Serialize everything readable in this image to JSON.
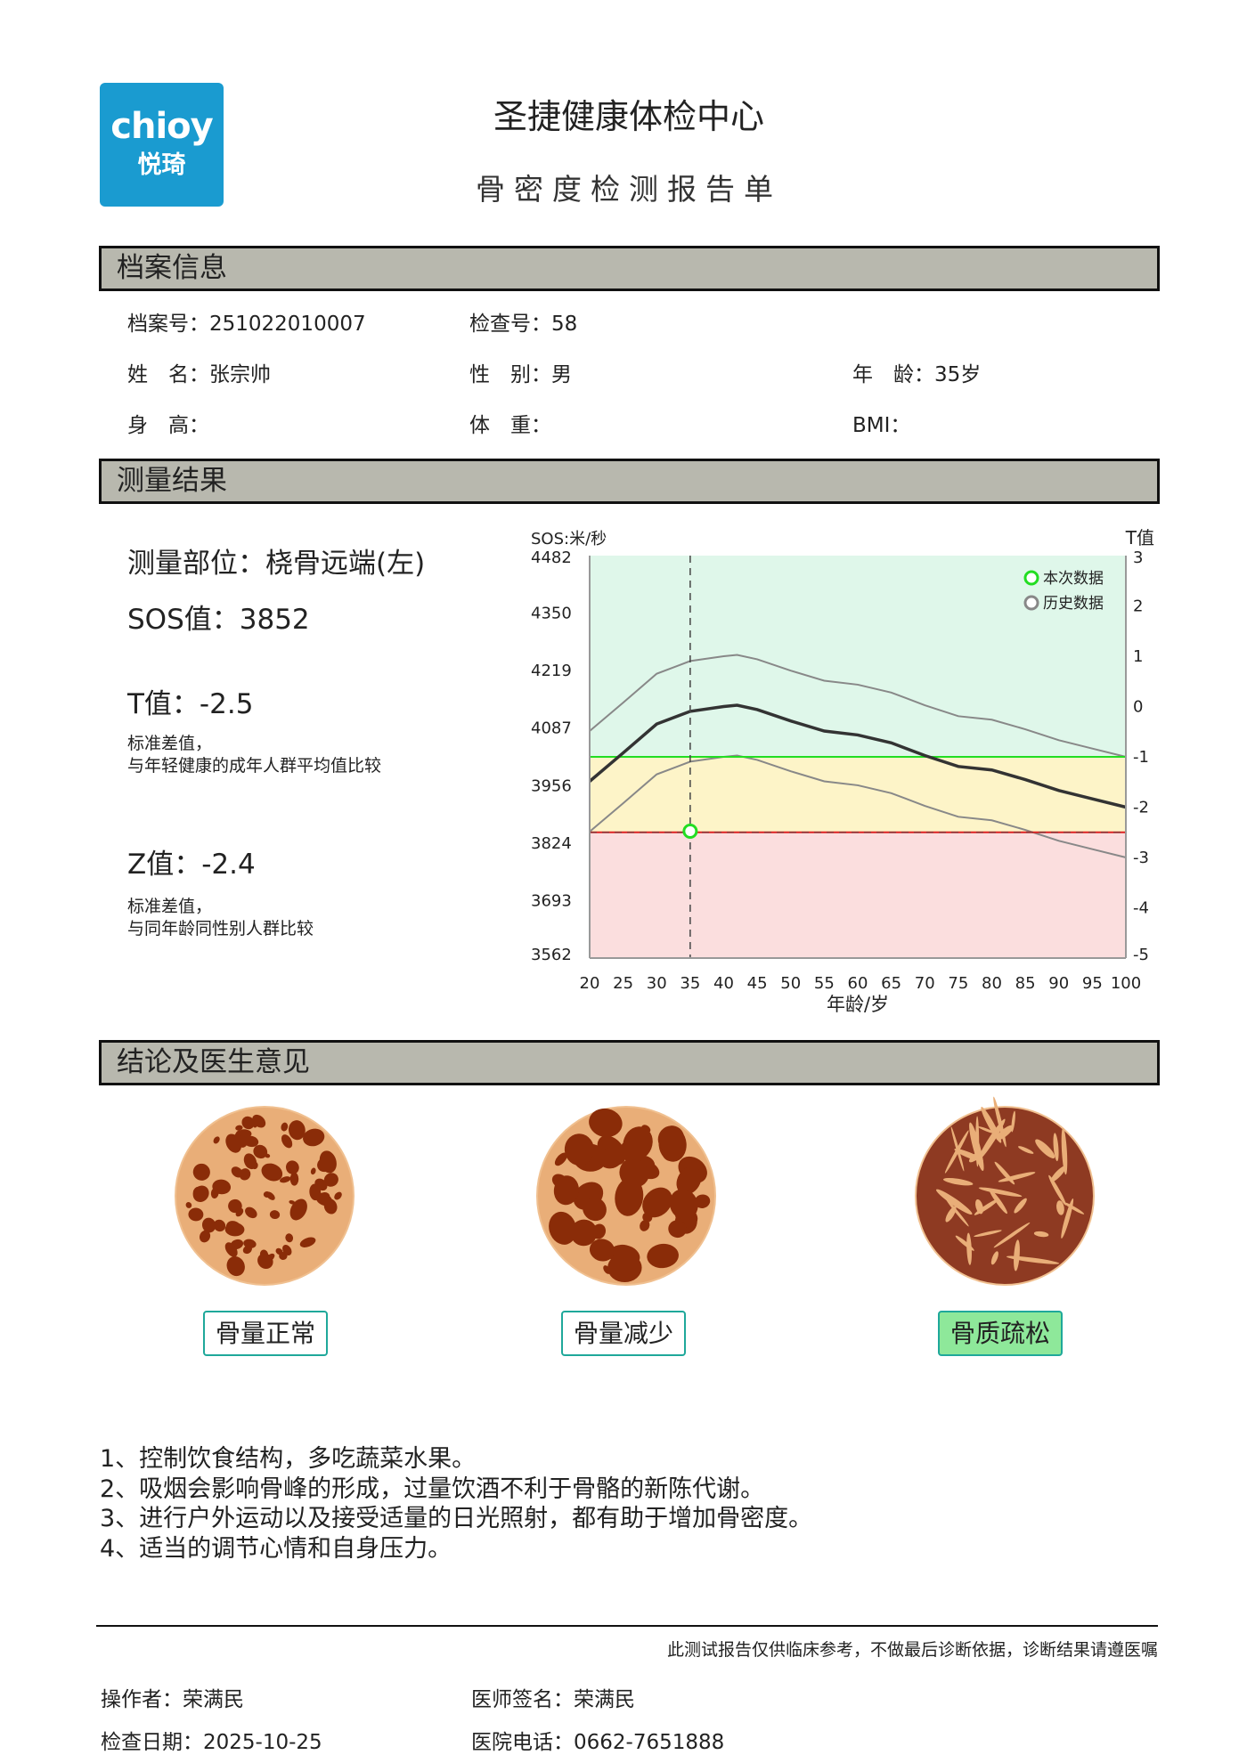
{
  "header": {
    "logo_en": "chioy",
    "logo_cn": "悦琦",
    "title": "圣捷健康体检中心",
    "subtitle": "骨密度检测报告单"
  },
  "profile": {
    "section": "档案信息",
    "file_no": "档案号：251022010007",
    "exam_no": "检查号：58",
    "name": "姓　名：张宗帅",
    "gender": "性　别：男",
    "age": "年　龄：35岁",
    "height": "身　高：",
    "weight": "体　重：",
    "bmi": "BMI："
  },
  "results": {
    "section": "测量结果",
    "site": "测量部位：桡骨远端(左)",
    "sos": "SOS值：3852",
    "t": "T值：-2.5",
    "t_note1": "标准差值，",
    "t_note2": "与年轻健康的成年人群平均值比较",
    "z": "Z值：-2.4",
    "z_note1": "标准差值，",
    "z_note2": "与同年龄同性别人群比较"
  },
  "chart_data": {
    "type": "line",
    "ylabel_left": "SOS:米/秒",
    "ylabel_right": "T值",
    "xlabel": "年龄/岁",
    "ylim": [
      3562,
      4482
    ],
    "y2lim": [
      -5,
      3
    ],
    "xlim": [
      20,
      100
    ],
    "yticks": [
      "4482",
      "4350",
      "4219",
      "4087",
      "3956",
      "3824",
      "3693",
      "3562"
    ],
    "y2ticks": [
      "3",
      "2",
      "1",
      "0",
      "-1",
      "-2",
      "-3",
      "-4",
      "-5"
    ],
    "xticks": [
      "20",
      "25",
      "30",
      "35",
      "40",
      "45",
      "50",
      "55",
      "60",
      "65",
      "70",
      "75",
      "80",
      "85",
      "90",
      "95",
      "100"
    ],
    "legend": {
      "current": "本次数据",
      "history": "历史数据",
      "placement": "top-right"
    },
    "zones": [
      {
        "from_t": -1,
        "to_t": 3,
        "color": "#dff7ea"
      },
      {
        "from_t": -2.5,
        "to_t": -1,
        "color": "#fdf4c8"
      },
      {
        "from_t": -5,
        "to_t": -2.5,
        "color": "#fbdede"
      }
    ],
    "threshold_lines": [
      {
        "t": -1,
        "color": "#22dd22"
      },
      {
        "t": -2.5,
        "color": "#dd2222"
      }
    ],
    "age": [
      20,
      25,
      30,
      35,
      40,
      42,
      45,
      50,
      55,
      60,
      65,
      70,
      75,
      80,
      85,
      90,
      95,
      100
    ],
    "mean_sos": [
      3966,
      4031,
      4097,
      4126,
      4137,
      4140,
      4130,
      4104,
      4081,
      4072,
      4054,
      4025,
      4000,
      3992,
      3970,
      3945,
      3926,
      3907
    ],
    "band_sd_sos": 115,
    "current_point": {
      "age": 35,
      "sos": 3852,
      "t": -2.5
    },
    "colors": {
      "mean": "#333333",
      "band": "#888888",
      "current": "#22dd22"
    }
  },
  "conclusion": {
    "section": "结论及医生意见",
    "categories": [
      {
        "label": "骨量正常",
        "active": false
      },
      {
        "label": "骨量减少",
        "active": false
      },
      {
        "label": "骨质疏松",
        "active": true
      }
    ],
    "advice": [
      "1、控制饮食结构，多吃蔬菜水果。",
      "2、吸烟会影响骨峰的形成，过量饮酒不利于骨骼的新陈代谢。",
      "3、进行户外运动以及接受适量的日光照射，都有助于增加骨密度。",
      "4、适当的调节心情和自身压力。"
    ]
  },
  "footer": {
    "disclaimer": "此测试报告仅供临床参考，不做最后诊断依据，诊断结果请遵医嘱",
    "operator": "操作者：荣满民",
    "doctor": "医师签名：荣满民",
    "date": "检查日期：2025-10-25",
    "phone": "医院电话：0662-7651888"
  }
}
